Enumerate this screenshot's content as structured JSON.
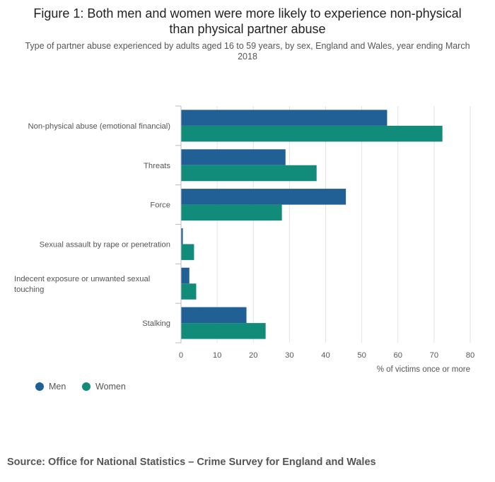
{
  "title": "Figure 1: Both men and women were more likely to experience non-physical than physical partner abuse",
  "subtitle": "Type of partner abuse experienced by adults aged 16 to 59 years, by sex, England and Wales, year ending March 2018",
  "source": "Source: Office for National Statistics – Crime Survey for England and Wales",
  "colors": {
    "men": "#206095",
    "women": "#118c7b"
  },
  "chart_data": {
    "type": "bar",
    "orientation": "horizontal",
    "categories": [
      "Non-physical abuse (emotional financial)",
      "Threats",
      "Force",
      "Sexual assault by rape or penetration",
      "Indecent exposure or unwanted sexual touching",
      "Stalking"
    ],
    "series": [
      {
        "name": "Men",
        "values": [
          57.0,
          28.9,
          45.6,
          0.5,
          2.3,
          18.1
        ]
      },
      {
        "name": "Women",
        "values": [
          72.3,
          37.5,
          27.9,
          3.6,
          4.2,
          23.4
        ]
      }
    ],
    "xlabel": "% of victims once or more",
    "xlim": [
      0,
      80
    ],
    "xticks": [
      0,
      10,
      20,
      30,
      40,
      50,
      60,
      70,
      80
    ],
    "grid": true,
    "legend": "bottom-left"
  }
}
